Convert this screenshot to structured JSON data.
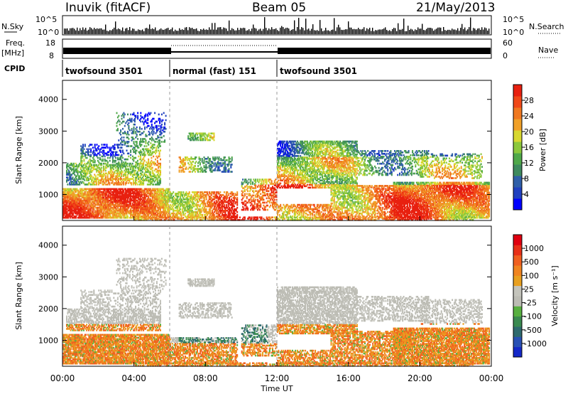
{
  "header": {
    "station": "Inuvik (fitACF)",
    "beam": "Beam 05",
    "date": "21/May/2013"
  },
  "panels": {
    "nsky_label": "N.Sky",
    "nsearch_label": "N.Search",
    "nave_label": "Nave",
    "freq_label": "Freq.",
    "freq_unit": "[MHz]",
    "cpid_label": "CPID",
    "count_ticks": [
      "10^5",
      "10^0"
    ],
    "freq_ticks": [
      "18",
      "8"
    ],
    "nave_ticks": [
      "60",
      "0"
    ]
  },
  "cpid_segments": [
    {
      "label": "twofsound 3501",
      "start_h": 0,
      "end_h": 6
    },
    {
      "label": "normal (fast) 151",
      "start_h": 6,
      "end_h": 12
    },
    {
      "label": "twofsound 3501",
      "start_h": 12,
      "end_h": 24
    }
  ],
  "chart_data": [
    {
      "type": "heatmap",
      "title": "Power",
      "xlabel": "Time UT",
      "ylabel": "Slant Range [km]",
      "xlim": [
        0,
        24
      ],
      "ylim": [
        180,
        4600
      ],
      "x_tick_labels": [
        "00:00",
        "04:00",
        "08:00",
        "12:00",
        "16:00",
        "20:00",
        "00:00"
      ],
      "y_ticks": [
        1000,
        2000,
        3000,
        4000
      ],
      "colorbar": {
        "label": "Power [dB]",
        "ticks": [
          "4",
          "8",
          "12",
          "16",
          "20",
          "24",
          "28"
        ],
        "colors": [
          "#0000ff",
          "#2040c0",
          "#2f5fa8",
          "#3e8a5e",
          "#4fa84a",
          "#8cc83c",
          "#d8d830",
          "#f0a028",
          "#f07820",
          "#f04818",
          "#e82010"
        ]
      }
    },
    {
      "type": "heatmap",
      "title": "Velocity",
      "xlabel": "Time UT",
      "ylabel": "Slant Range [km]",
      "xlim": [
        0,
        24
      ],
      "ylim": [
        180,
        4600
      ],
      "x_tick_labels": [
        "00:00",
        "04:00",
        "08:00",
        "12:00",
        "16:00",
        "20:00",
        "00:00"
      ],
      "y_ticks": [
        1000,
        2000,
        3000,
        4000
      ],
      "colorbar": {
        "label": "Velocity [m s⁻¹]",
        "ticks": [
          "1000",
          "500",
          "100",
          "25",
          "-25",
          "-100",
          "-500",
          "-1000"
        ],
        "colors": [
          "#1428c8",
          "#2850b4",
          "#2e6a6e",
          "#3a8a50",
          "#58b040",
          "#bcbcb4",
          "#c4c4bc",
          "#e8a020",
          "#f08420",
          "#f06020",
          "#e83018",
          "#e00010"
        ]
      }
    }
  ],
  "colors": {
    "ground_scatter": "#b8b8b0",
    "dashed_boundary": "#999999"
  }
}
